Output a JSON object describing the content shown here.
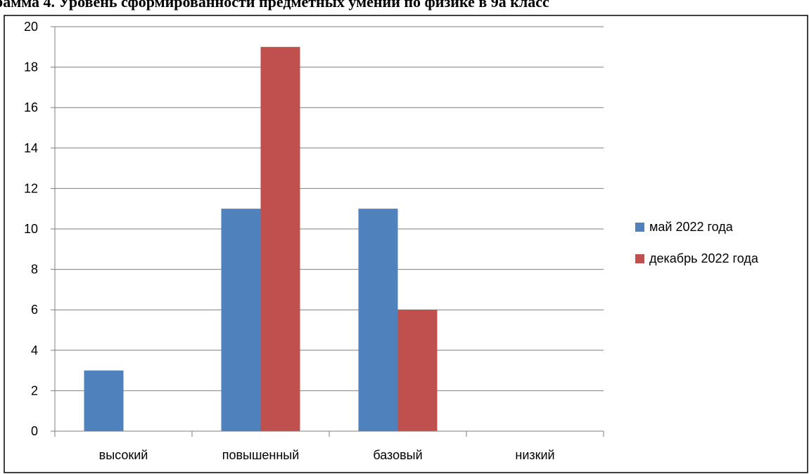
{
  "chart_data": {
    "type": "bar",
    "title": "рамма 4. Уровень сформированности предметных умений по физике в 9а класс",
    "categories": [
      "высокий",
      "повышенный",
      "базовый",
      "низкий"
    ],
    "series": [
      {
        "name": "май 2022 года",
        "values": [
          3,
          11,
          11,
          0
        ],
        "color": "#4F81BD"
      },
      {
        "name": "декабрь 2022 года",
        "values": [
          0,
          19,
          6,
          0
        ],
        "color": "#C0504D"
      }
    ],
    "xlabel": "",
    "ylabel": "",
    "ylim": [
      0,
      20
    ],
    "yticks": [
      0,
      2,
      4,
      6,
      8,
      10,
      12,
      14,
      16,
      18,
      20
    ],
    "grid": true,
    "legend_position": "right"
  }
}
